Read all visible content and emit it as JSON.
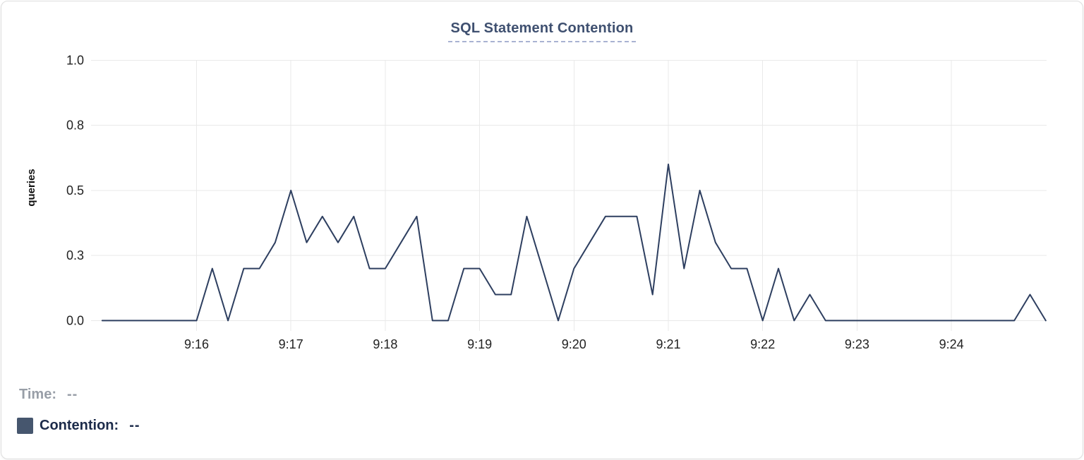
{
  "chart": {
    "title": "SQL Statement Contention"
  },
  "legend": {
    "time_label": "Time:",
    "time_value": "--",
    "series_label": "Contention:",
    "series_value": "--"
  },
  "colors": {
    "title_color": "#3f5070",
    "title_underline_color": "#a9b3d2",
    "line_color": "#2e3f60",
    "grid_color": "#e9e9e9",
    "tick_color": "#222222",
    "axis_label_color": "#111111",
    "legend_time_color": "#989ea7",
    "legend_series_color": "#1c2b4a",
    "swatch_color": "#46566e",
    "card_border_color": "#dedede",
    "background_color": "#ffffff"
  },
  "chart_data": {
    "type": "line",
    "title": "SQL Statement Contention",
    "xlabel": "",
    "ylabel": "queries",
    "ylim": [
      0,
      1.0
    ],
    "grid": true,
    "legend_position": "bottom-left",
    "y_ticks": [
      {
        "value": 0.0,
        "label": "0.0"
      },
      {
        "value": 0.25,
        "label": "0.3"
      },
      {
        "value": 0.5,
        "label": "0.5"
      },
      {
        "value": 0.75,
        "label": "0.8"
      },
      {
        "value": 1.0,
        "label": "1.0"
      }
    ],
    "x_tick_labels": [
      "9:16",
      "9:17",
      "9:18",
      "9:19",
      "9:20",
      "9:21",
      "9:22",
      "9:23",
      "9:24"
    ],
    "series": [
      {
        "name": "Contention",
        "x": [
          "9:15:00",
          "9:15:10",
          "9:15:20",
          "9:15:30",
          "9:15:40",
          "9:15:50",
          "9:16:00",
          "9:16:10",
          "9:16:20",
          "9:16:30",
          "9:16:40",
          "9:16:50",
          "9:17:00",
          "9:17:10",
          "9:17:20",
          "9:17:30",
          "9:17:40",
          "9:17:50",
          "9:18:00",
          "9:18:10",
          "9:18:20",
          "9:18:30",
          "9:18:40",
          "9:18:50",
          "9:19:00",
          "9:19:10",
          "9:19:20",
          "9:19:30",
          "9:19:40",
          "9:19:50",
          "9:20:00",
          "9:20:10",
          "9:20:20",
          "9:20:30",
          "9:20:40",
          "9:20:50",
          "9:21:00",
          "9:21:10",
          "9:21:20",
          "9:21:30",
          "9:21:40",
          "9:21:50",
          "9:22:00",
          "9:22:10",
          "9:22:20",
          "9:22:30",
          "9:22:40",
          "9:22:50",
          "9:23:00",
          "9:23:10",
          "9:23:20",
          "9:23:30",
          "9:23:40",
          "9:23:50",
          "9:24:00",
          "9:24:10",
          "9:24:20",
          "9:24:30",
          "9:24:40",
          "9:24:50",
          "9:25:00"
        ],
        "values": [
          0,
          0,
          0,
          0,
          0,
          0,
          0,
          0.2,
          0,
          0.2,
          0.2,
          0.3,
          0.5,
          0.3,
          0.4,
          0.3,
          0.4,
          0.2,
          0.2,
          0.3,
          0.4,
          0,
          0,
          0.2,
          0.2,
          0.1,
          0.1,
          0.4,
          0.2,
          0,
          0.2,
          0.3,
          0.4,
          0.4,
          0.4,
          0.1,
          0.6,
          0.2,
          0.5,
          0.3,
          0.2,
          0.2,
          0,
          0.2,
          0,
          0.1,
          0,
          0,
          0,
          0,
          0,
          0,
          0,
          0,
          0,
          0,
          0,
          0,
          0,
          0.1,
          0
        ]
      }
    ]
  }
}
